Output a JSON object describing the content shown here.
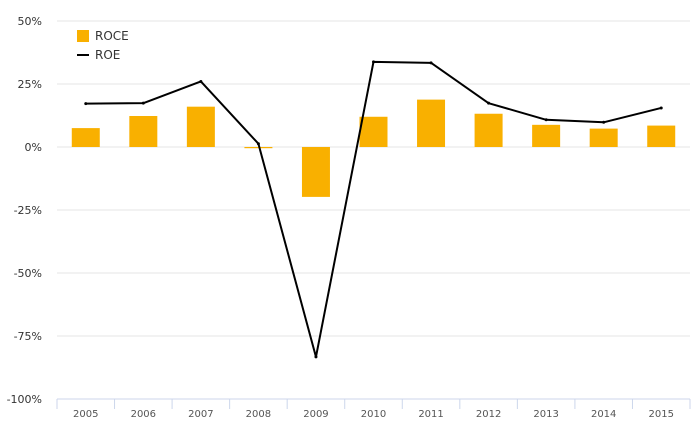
{
  "chart_data": {
    "type": "bar",
    "categories": [
      "2005",
      "2006",
      "2007",
      "2008",
      "2009",
      "2010",
      "2011",
      "2012",
      "2013",
      "2014",
      "2015"
    ],
    "series": [
      {
        "name": "ROCE",
        "type": "bar",
        "color": "#f9b000",
        "values": [
          7.5,
          12.3,
          16.0,
          0.0,
          -19.8,
          12.0,
          18.8,
          13.2,
          8.8,
          7.3,
          8.5
        ]
      },
      {
        "name": "ROE",
        "type": "line",
        "color": "#000000",
        "values": [
          17.2,
          17.4,
          26.0,
          1.3,
          -83.3,
          33.8,
          33.4,
          17.4,
          10.8,
          9.8,
          15.5
        ]
      }
    ],
    "y_ticks": [
      50,
      25,
      0,
      -25,
      -50,
      -75,
      -100
    ],
    "y_tick_labels": [
      "50%",
      "25%",
      "0%",
      "-25%",
      "-50%",
      "-75%",
      "-100%"
    ],
    "ylim": [
      -100,
      50
    ],
    "grid": true,
    "legend_position": "top-left"
  }
}
